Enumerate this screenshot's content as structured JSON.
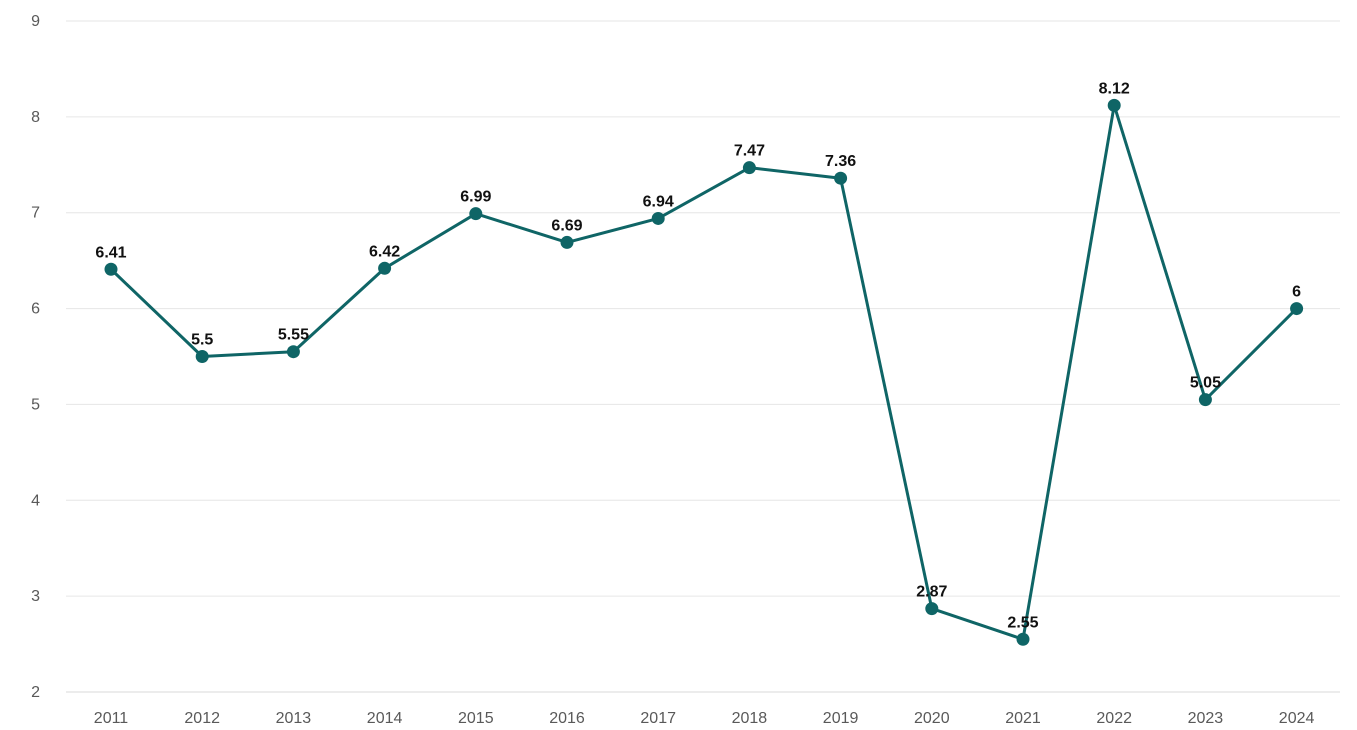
{
  "chart_data": {
    "type": "line",
    "title": "",
    "xlabel": "",
    "ylabel": "",
    "x": [
      "2011",
      "2012",
      "2013",
      "2014",
      "2015",
      "2016",
      "2017",
      "2018",
      "2019",
      "2020",
      "2021",
      "2022",
      "2023",
      "2024"
    ],
    "series": [
      {
        "values": [
          6.41,
          5.5,
          5.55,
          6.42,
          6.99,
          6.69,
          6.94,
          7.47,
          7.36,
          2.87,
          2.55,
          8.12,
          5.05,
          6
        ],
        "labels": [
          "6.41",
          "5.5",
          "5.55",
          "6.42",
          "6.99",
          "6.69",
          "6.94",
          "7.47",
          "7.36",
          "2.87",
          "2.55",
          "8.12",
          "5.05",
          "6"
        ],
        "color": "#0f6566"
      }
    ],
    "yticks": [
      "2",
      "3",
      "4",
      "5",
      "6",
      "7",
      "8",
      "9"
    ],
    "ylim": [
      2,
      9
    ],
    "grid": true,
    "legend": "none"
  }
}
